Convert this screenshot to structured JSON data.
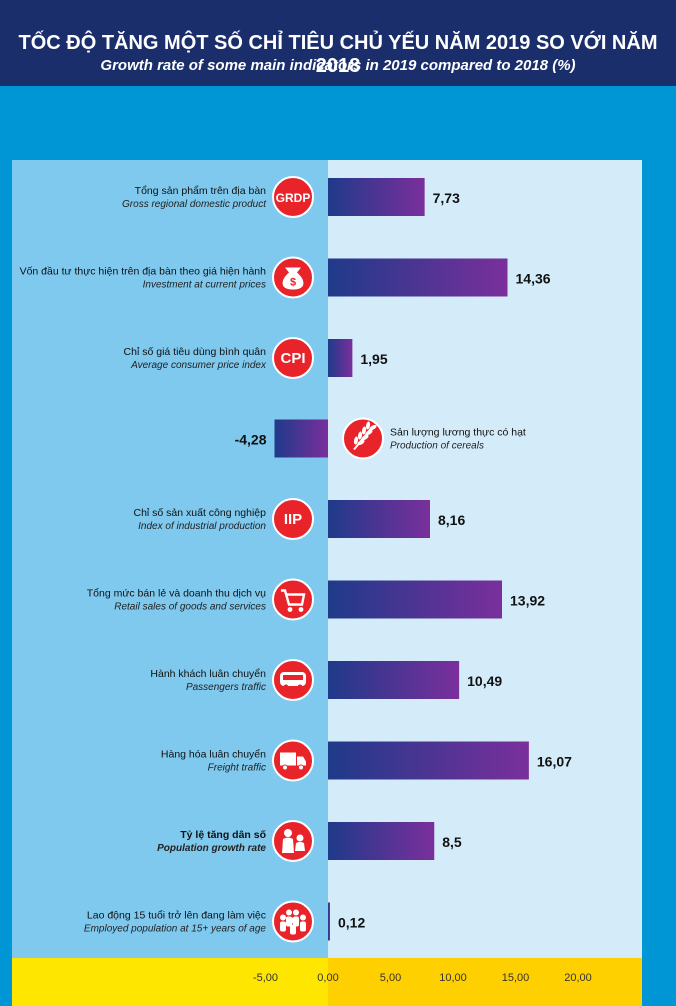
{
  "title": "TỐC ĐỘ TĂNG MỘT SỐ CHỈ TIÊU CHỦ YẾU NĂM 2019 SO VỚI NĂM 2018",
  "subtitle": "Growth rate of some main indicators in 2019 compared to 2018 (%)",
  "colors": {
    "header": "#1a2e6b",
    "background": "#0096d6",
    "panel_left": "#7fc8ee",
    "panel_right": "#d4ecfa",
    "axis_band_left": "#ffe600",
    "axis_band_right": "#ffd000",
    "bar_start": "#1f3a8a",
    "bar_end": "#7a2f9c",
    "icon_red": "#e8232a"
  },
  "chart_data": {
    "type": "bar",
    "orientation": "horizontal",
    "xlim": [
      -5,
      20
    ],
    "x_ticks": [
      "-5,00",
      "0,00",
      "5,00",
      "10,00",
      "15,00",
      "20,00"
    ],
    "categories": [
      {
        "vi": "Tổng sản phẩm trên địa bàn",
        "en": "Gross regional domestic product",
        "icon": "grdp-icon",
        "icon_text": "GRDP"
      },
      {
        "vi": "Vốn đầu tư thực hiện trên địa bàn theo giá hiện hành",
        "en": "Investment at current prices",
        "icon": "money-bag-icon",
        "icon_text": ""
      },
      {
        "vi": "Chỉ số giá tiêu dùng bình quân",
        "en": "Average consumer price index",
        "icon": "cpi-icon",
        "icon_text": "CPI"
      },
      {
        "vi": "Sản lượng lương thực có hạt",
        "en": "Production of cereals",
        "icon": "wheat-icon",
        "icon_text": ""
      },
      {
        "vi": "Chỉ số sản xuất công nghiệp",
        "en": "Index of industrial production",
        "icon": "iip-icon",
        "icon_text": "IIP"
      },
      {
        "vi": "Tổng mức bán lẻ và doanh thu dịch vụ",
        "en": "Retail sales of goods and services",
        "icon": "shopping-cart-icon",
        "icon_text": ""
      },
      {
        "vi": "Hành khách luân chuyển",
        "en": "Passengers traffic",
        "icon": "bus-icon",
        "icon_text": ""
      },
      {
        "vi": "Hàng hóa luân chuyển",
        "en": "Freight traffic",
        "icon": "truck-icon",
        "icon_text": ""
      },
      {
        "vi": "Tỷ lệ tăng dân số",
        "en": "Population growth rate",
        "icon": "family-icon",
        "icon_text": ""
      },
      {
        "vi": "Lao động 15 tuổi trở lên đang làm việc",
        "en": "Employed population at 15+ years of age",
        "icon": "workers-icon",
        "icon_text": ""
      }
    ],
    "values": [
      7.73,
      14.36,
      1.95,
      -4.28,
      8.16,
      13.92,
      10.49,
      16.07,
      8.5,
      0.12
    ],
    "value_labels": [
      "7,73",
      "14,36",
      "1,95",
      "-4,28",
      "8,16",
      "13,92",
      "10,49",
      "16,07",
      "8,5",
      "0,12"
    ]
  }
}
